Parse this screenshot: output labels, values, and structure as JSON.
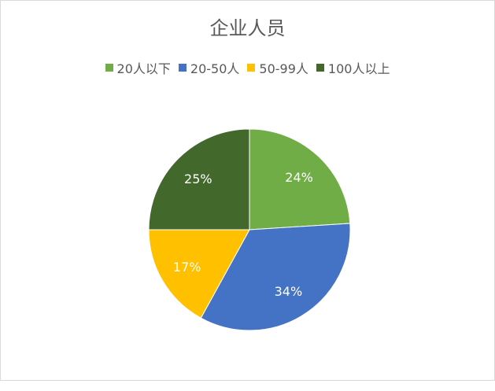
{
  "chart_data": {
    "type": "pie",
    "title": "企业人员",
    "categories": [
      "20人以下",
      "20-50人",
      "50-99人",
      "100人以上"
    ],
    "values": [
      24,
      34,
      17,
      25
    ],
    "data_labels": [
      "24%",
      "34%",
      "17%",
      "25%"
    ],
    "colors": [
      "#70AD47",
      "#4472C4",
      "#FFC000",
      "#43682B"
    ],
    "legend_position": "top"
  }
}
